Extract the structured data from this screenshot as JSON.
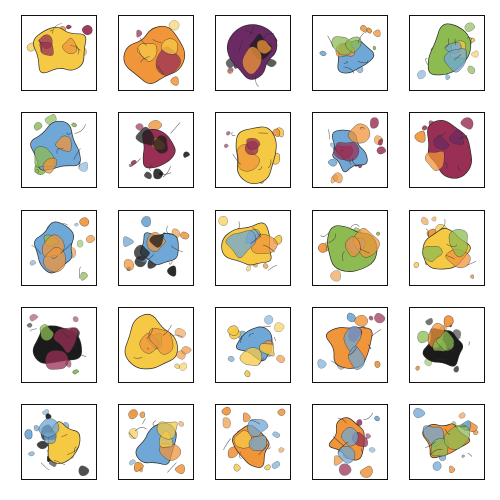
{
  "palette": {
    "yellow": "#f6c945",
    "orange": "#f0953a",
    "magenta": "#9a2f55",
    "purple": "#6b2a63",
    "blue": "#6fa8d6",
    "green": "#8dbb52",
    "dark": "#1b1b1b",
    "ink": "#2b2b2b"
  },
  "samples": [
    {
      "dominant": "yellow",
      "secondary": "orange",
      "accent": "magenta",
      "density": 0.85
    },
    {
      "dominant": "orange",
      "secondary": "magenta",
      "accent": "yellow",
      "density": 0.8
    },
    {
      "dominant": "purple",
      "secondary": "dark",
      "accent": "orange",
      "density": 0.8
    },
    {
      "dominant": "blue",
      "secondary": "orange",
      "accent": "green",
      "density": 0.5
    },
    {
      "dominant": "green",
      "secondary": "yellow",
      "accent": "blue",
      "density": 0.75
    },
    {
      "dominant": "blue",
      "secondary": "green",
      "accent": "orange",
      "density": 0.75
    },
    {
      "dominant": "magenta",
      "secondary": "orange",
      "accent": "dark",
      "density": 0.65
    },
    {
      "dominant": "yellow",
      "secondary": "orange",
      "accent": "magenta",
      "density": 0.8
    },
    {
      "dominant": "blue",
      "secondary": "orange",
      "accent": "magenta",
      "density": 0.45
    },
    {
      "dominant": "magenta",
      "secondary": "orange",
      "accent": "purple",
      "density": 0.85
    },
    {
      "dominant": "blue",
      "secondary": "green",
      "accent": "orange",
      "density": 0.6
    },
    {
      "dominant": "blue",
      "secondary": "orange",
      "accent": "dark",
      "density": 0.3
    },
    {
      "dominant": "yellow",
      "secondary": "orange",
      "accent": "blue",
      "density": 0.8
    },
    {
      "dominant": "green",
      "secondary": "blue",
      "accent": "orange",
      "density": 0.7
    },
    {
      "dominant": "yellow",
      "secondary": "orange",
      "accent": "green",
      "density": 0.75
    },
    {
      "dominant": "dark",
      "secondary": "green",
      "accent": "magenta",
      "density": 0.7
    },
    {
      "dominant": "yellow",
      "secondary": "green",
      "accent": "orange",
      "density": 0.85
    },
    {
      "dominant": "blue",
      "secondary": "orange",
      "accent": "yellow",
      "density": 0.3
    },
    {
      "dominant": "orange",
      "secondary": "magenta",
      "accent": "blue",
      "density": 0.7
    },
    {
      "dominant": "dark",
      "secondary": "orange",
      "accent": "green",
      "density": 0.5
    },
    {
      "dominant": "yellow",
      "secondary": "dark",
      "accent": "blue",
      "density": 0.35
    },
    {
      "dominant": "blue",
      "secondary": "orange",
      "accent": "yellow",
      "density": 0.5
    },
    {
      "dominant": "orange",
      "secondary": "yellow",
      "accent": "blue",
      "density": 0.45
    },
    {
      "dominant": "orange",
      "secondary": "magenta",
      "accent": "blue",
      "density": 0.5
    },
    {
      "dominant": "orange",
      "secondary": "blue",
      "accent": "green",
      "density": 0.6
    }
  ]
}
